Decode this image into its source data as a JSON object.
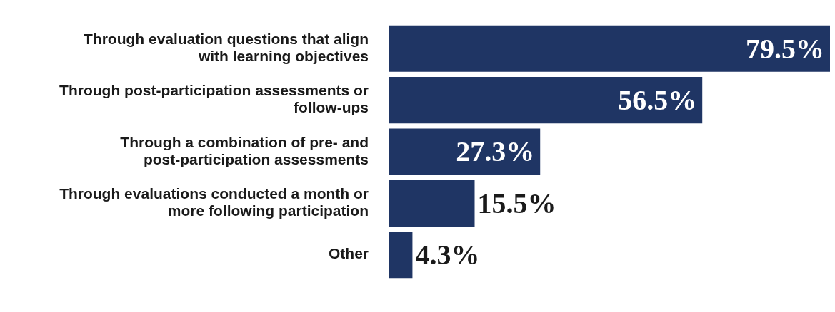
{
  "chart_data": {
    "type": "bar",
    "orientation": "horizontal",
    "categories": [
      "Through evaluation questions that align with learning objectives",
      "Through post-participation assessments or follow-ups",
      "Through a combination of pre- and post-participation assessments",
      "Through evaluations conducted a month or more following participation",
      "Other"
    ],
    "values": [
      79.5,
      56.5,
      27.3,
      15.5,
      4.3
    ],
    "value_labels": [
      "79.5%",
      "56.5%",
      "27.3%",
      "15.5%",
      "4.3%"
    ],
    "color": "#1f3564"
  }
}
